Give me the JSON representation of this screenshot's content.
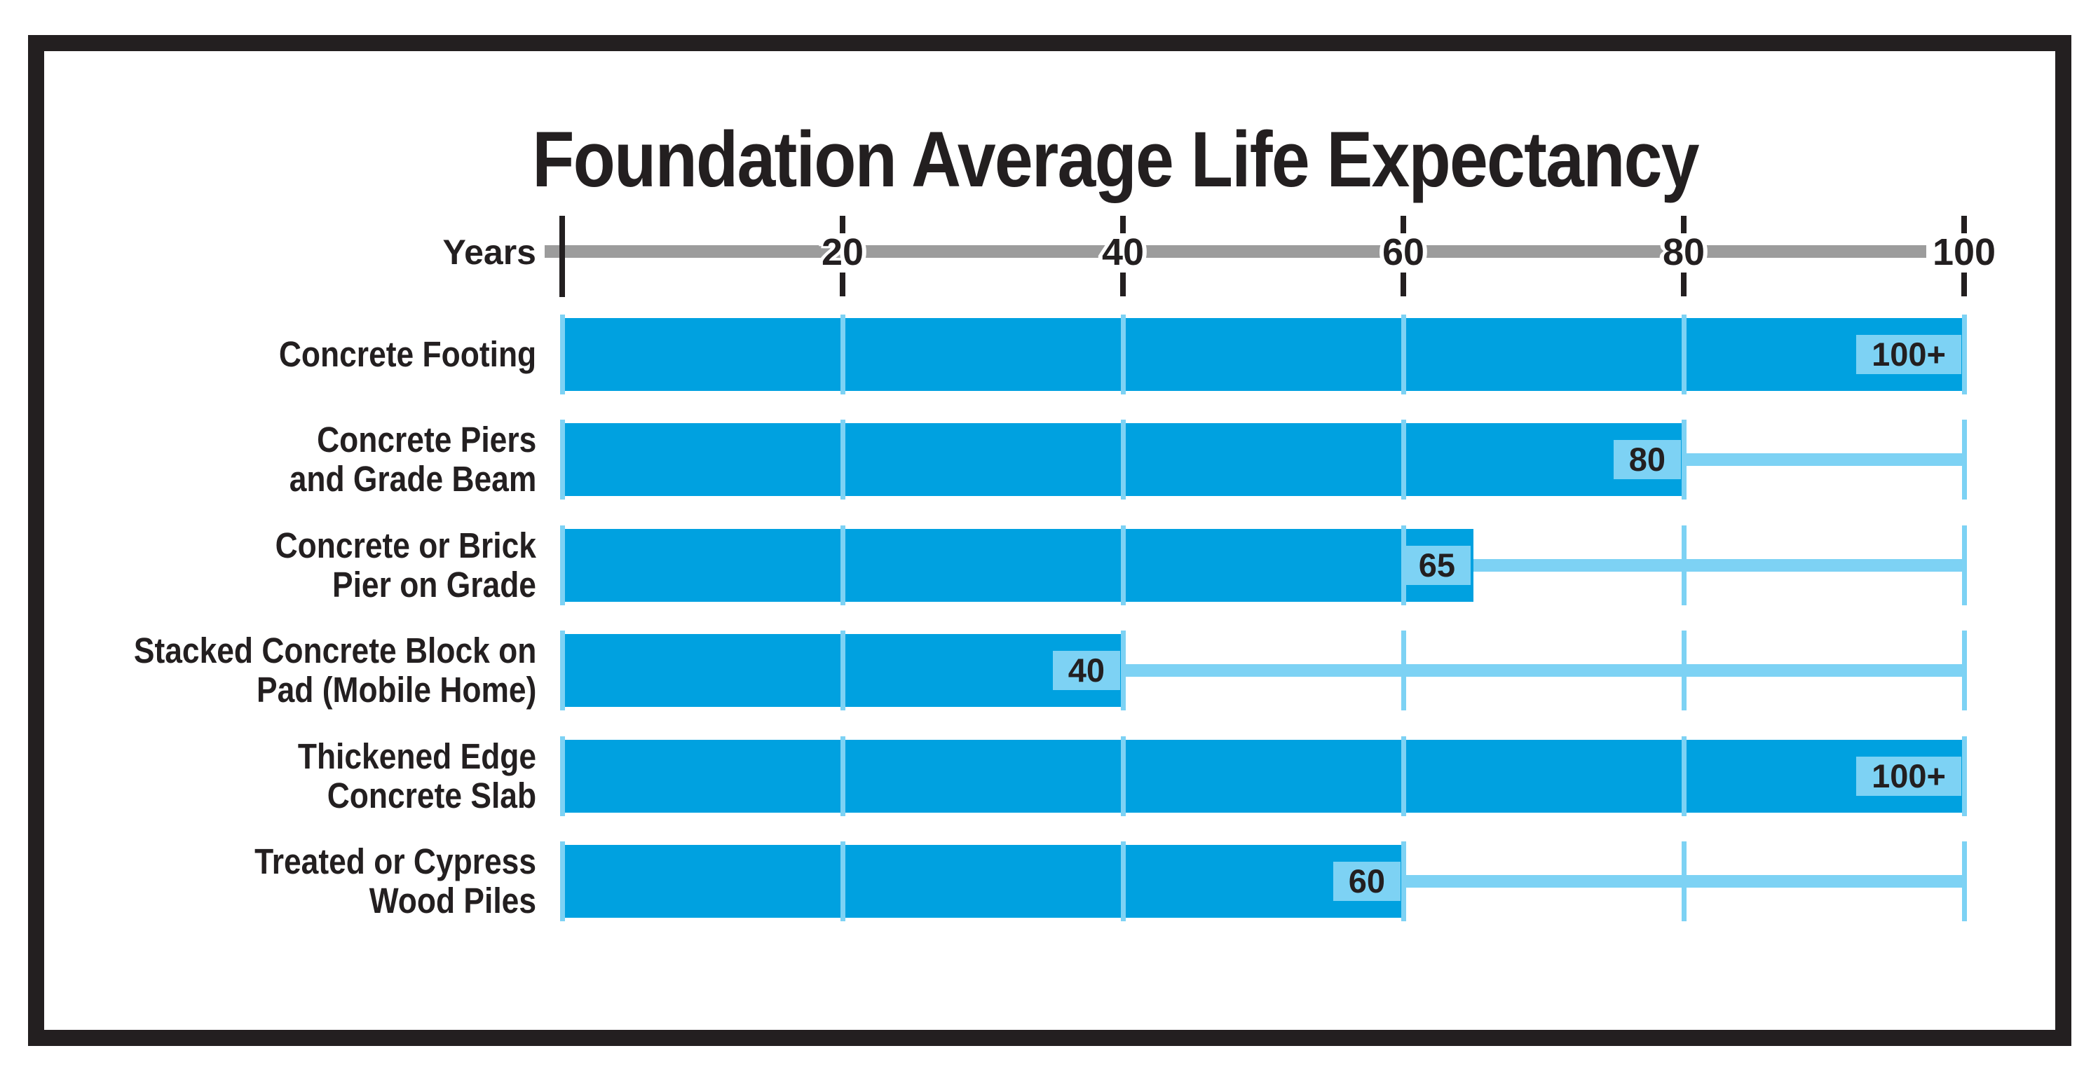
{
  "title": "Foundation Average Life Expectancy",
  "axis": {
    "label": "Years",
    "min": 0,
    "max": 100,
    "ticks": [
      20,
      40,
      60,
      80,
      100
    ]
  },
  "chart_data": {
    "type": "bar",
    "orientation": "horizontal",
    "title": "Foundation Average Life Expectancy",
    "xlabel": "Years",
    "xlim": [
      0,
      100
    ],
    "xticks": [
      20,
      40,
      60,
      80,
      100
    ],
    "grid": "per-row light tick segments at 0,20,40,60,80,100",
    "legend_position": "none",
    "categories": [
      "Concrete Footing",
      "Concrete Piers and Grade Beam",
      "Concrete or Brick Pier on Grade",
      "Stacked Concrete Block on Pad (Mobile Home)",
      "Thickened Edge Concrete Slab",
      "Treated or Cypress Wood Piles"
    ],
    "category_lines": [
      [
        "Concrete Footing"
      ],
      [
        "Concrete Piers",
        "and Grade Beam"
      ],
      [
        "Concrete or Brick",
        "Pier on Grade"
      ],
      [
        "Stacked Concrete Block on",
        "Pad (Mobile Home)"
      ],
      [
        "Thickened Edge",
        "Concrete Slab"
      ],
      [
        "Treated or Cypress",
        "Wood Piles"
      ]
    ],
    "values": [
      100,
      80,
      65,
      40,
      100,
      60
    ],
    "value_labels": [
      "100+",
      "80",
      "65",
      "40",
      "100+",
      "60"
    ],
    "reference_line_to": 100
  },
  "colors": {
    "bar_blue": "#00A1E0",
    "light_blue": "#7DD2F4",
    "axis_gray": "#9C9C9C",
    "text_black": "#231F20",
    "background": "#FFFFFF",
    "frame": "#231F20"
  }
}
